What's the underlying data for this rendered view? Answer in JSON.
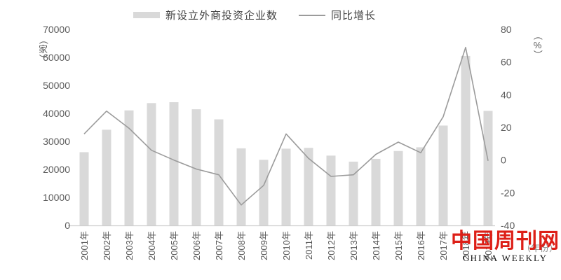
{
  "legend": {
    "bar_label": "新设立外商投资企业数",
    "line_label": "同比增长"
  },
  "watermark": {
    "cn": "中国周刊网",
    "en": "CHINA WEEKLY"
  },
  "colors": {
    "bar": "#d9d9d9",
    "line": "#9b9b9b",
    "axis_text": "#595959",
    "baseline": "#cfcfcf",
    "watermark_red": "#dd1f17"
  },
  "chart_data": {
    "type": "bar",
    "subtype": "bar+line combo, dual axis",
    "title": "",
    "categories": [
      "2001年",
      "2002年",
      "2003年",
      "2004年",
      "2005年",
      "2006年",
      "2007年",
      "2008年",
      "2009年",
      "2010年",
      "2011年",
      "2012年",
      "2013年",
      "2014年",
      "2015年",
      "2016年",
      "2017年",
      "2018年",
      "2019年"
    ],
    "series": [
      {
        "name": "新设立外商投资企业数",
        "type": "bar",
        "axis": "left",
        "unit": "家",
        "values": [
          26140,
          34171,
          41081,
          43664,
          44001,
          41485,
          37871,
          27514,
          23435,
          27406,
          27712,
          24925,
          22773,
          23778,
          26575,
          27900,
          35652,
          60533,
          40888
        ]
      },
      {
        "name": "同比增长",
        "type": "line",
        "axis": "right",
        "unit": "%",
        "values": [
          16,
          30,
          19.5,
          6,
          0,
          -5.5,
          -9,
          -27.5,
          -15.5,
          16,
          1,
          -10,
          -9,
          3.5,
          11,
          4.5,
          26.5,
          69,
          -0.5
        ]
      }
    ],
    "left_axis": {
      "unit_label": "（家）",
      "ticks": [
        0,
        10000,
        20000,
        30000,
        40000,
        50000,
        60000,
        70000
      ],
      "range": [
        0,
        70000
      ]
    },
    "right_axis": {
      "unit_label": "（%）",
      "ticks": [
        -40,
        -20,
        0,
        20,
        40,
        60,
        80
      ],
      "range": [
        -40,
        80
      ]
    },
    "x_axis": {
      "unit_label": "（年份）"
    },
    "grid": false,
    "legend_position": "top-center"
  }
}
